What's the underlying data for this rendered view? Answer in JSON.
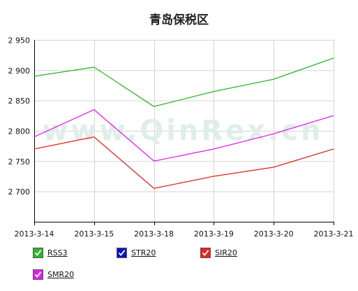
{
  "chart_data": {
    "type": "line",
    "title": "青岛保税区",
    "xlabel": "",
    "ylabel": "",
    "x": [
      "2013-3-14",
      "2013-3-15",
      "2013-3-18",
      "2013-3-19",
      "2013-3-20",
      "2013-3-21"
    ],
    "ylim": [
      2650,
      2950
    ],
    "yticks": [
      2700,
      2750,
      2800,
      2850,
      2900,
      2950
    ],
    "ytick_labels": [
      "2 700",
      "2 750",
      "2 800",
      "2 850",
      "2 900",
      "2 950"
    ],
    "grid": true,
    "watermark": "www.QinRex.cn",
    "legend_position": "bottom-left",
    "series": [
      {
        "name": "RSS3",
        "color": "#2db52d",
        "values": [
          2890,
          2905,
          2840,
          2865,
          2885,
          2920
        ],
        "visible": true
      },
      {
        "name": "STR20",
        "color": "#1010c8",
        "values": [
          null,
          null,
          null,
          null,
          null,
          null
        ],
        "visible": true
      },
      {
        "name": "SIR20",
        "color": "#e0281e",
        "values": [
          2770,
          2790,
          2705,
          2725,
          2740,
          2770
        ],
        "visible": true
      },
      {
        "name": "SMR20",
        "color": "#e020e8",
        "values": [
          2790,
          2835,
          2750,
          2770,
          2795,
          2825
        ],
        "visible": true
      }
    ]
  }
}
